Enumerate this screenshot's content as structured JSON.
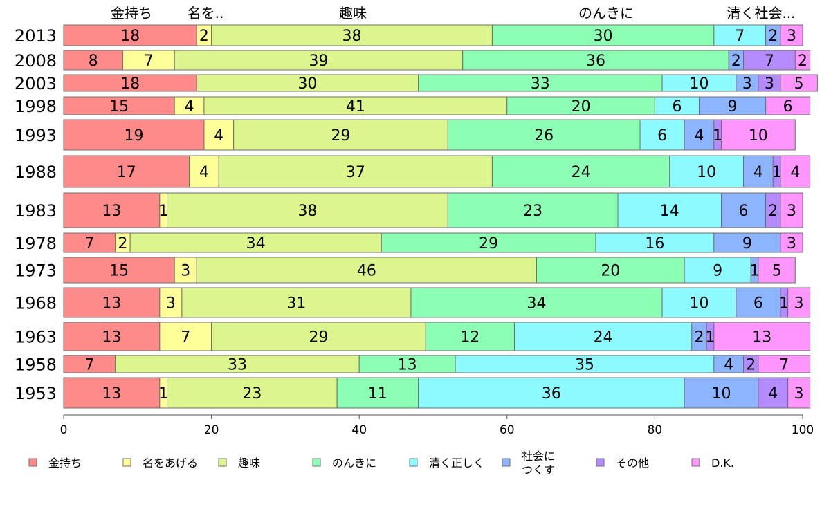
{
  "chart_data": {
    "type": "bar",
    "orientation": "horizontal",
    "stacked": true,
    "percent_scale": true,
    "categories": [
      "2013",
      "2008",
      "2003",
      "1998",
      "1993",
      "1988",
      "1983",
      "1978",
      "1973",
      "1968",
      "1963",
      "1958",
      "1953"
    ],
    "xlim": [
      0,
      100
    ],
    "xticks": [
      "0",
      "20",
      "40",
      "60",
      "80",
      "100"
    ],
    "column_headers": [
      "金持ち",
      "名を..",
      "趣味",
      "のんきに",
      "清く社会..."
    ],
    "series": [
      {
        "name": "金持ち",
        "color": "#ff8a8a",
        "values": [
          18,
          8,
          18,
          15,
          19,
          17,
          13,
          7,
          15,
          13,
          13,
          7,
          13
        ]
      },
      {
        "name": "名をあげる",
        "color": "#ffff99",
        "values": [
          2,
          7,
          0,
          4,
          4,
          4,
          1,
          2,
          3,
          3,
          7,
          0,
          1
        ]
      },
      {
        "name": "趣味",
        "color": "#dcf58c",
        "values": [
          38,
          39,
          30,
          41,
          29,
          37,
          38,
          34,
          46,
          31,
          29,
          33,
          23
        ]
      },
      {
        "name": "のんきに",
        "color": "#8cffb4",
        "values": [
          30,
          36,
          33,
          20,
          26,
          24,
          23,
          29,
          20,
          34,
          12,
          13,
          11
        ]
      },
      {
        "name": "清く正しく",
        "color": "#8cfaff",
        "values": [
          7,
          0,
          10,
          6,
          6,
          10,
          14,
          16,
          9,
          10,
          24,
          35,
          36
        ]
      },
      {
        "name": "社会に\nつくす",
        "color": "#8cb4ff",
        "values": [
          2,
          2,
          3,
          9,
          4,
          4,
          6,
          9,
          1,
          6,
          2,
          4,
          10
        ]
      },
      {
        "name": "その他",
        "color": "#b48cff",
        "values": [
          0,
          7,
          3,
          0,
          1,
          1,
          2,
          0,
          0,
          1,
          1,
          2,
          4
        ]
      },
      {
        "name": "D.K.",
        "color": "#ff96ff",
        "values": [
          3,
          2,
          5,
          6,
          10,
          4,
          3,
          3,
          5,
          3,
          13,
          7,
          3
        ]
      }
    ],
    "legend_position": "bottom",
    "grid": false
  }
}
